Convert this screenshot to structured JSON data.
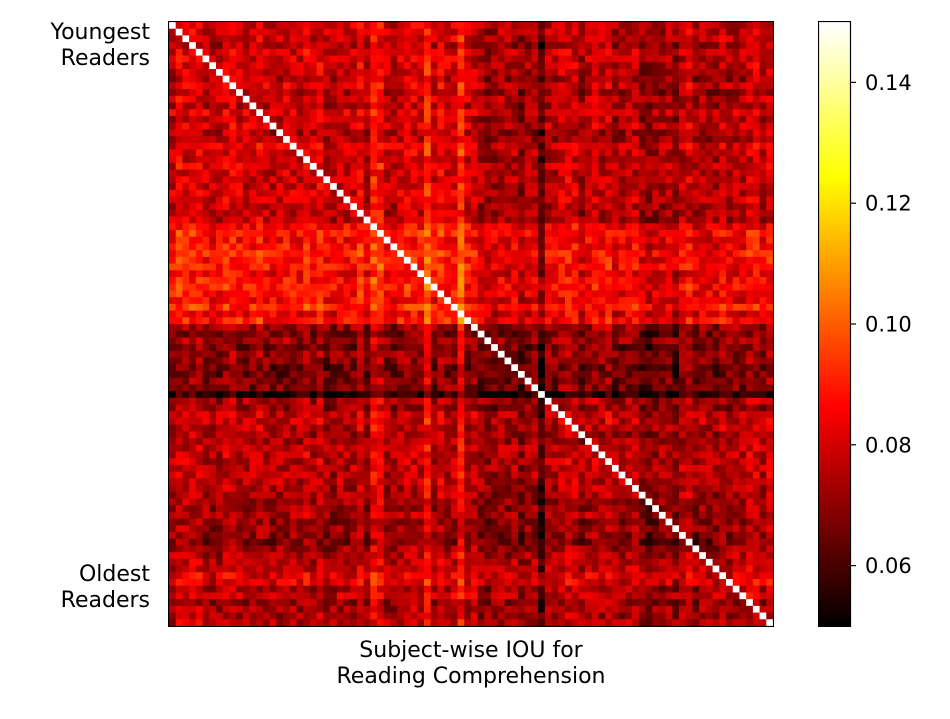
{
  "chart_data": {
    "type": "heatmap",
    "colormap": "hot",
    "rows": 90,
    "cols": 90,
    "diagonal_value": 0.15,
    "value_range": [
      0.05,
      0.15
    ],
    "row_labels": {
      "top": [
        "Youngest",
        "Readers"
      ],
      "bottom": [
        "Oldest",
        "Readers"
      ]
    },
    "xlabel": [
      "Subject-wise IOU for",
      "Reading Comprehension"
    ],
    "colorbar": {
      "vmin": 0.05,
      "vmax": 0.15,
      "ticks": [
        0.06,
        0.08,
        0.1,
        0.12,
        0.14
      ],
      "tick_labels": [
        "0.06",
        "0.08",
        "0.10",
        "0.12",
        "0.14"
      ]
    },
    "description_of_values": "Off-diagonal pairwise IOU mostly between 0.06 and 0.10; brighter band among upper-left subjects (~0.10-0.12), darker band in the lower region and a dark row near index 55 and dark column near index 55; diagonal is 1 (clipped to max)."
  }
}
